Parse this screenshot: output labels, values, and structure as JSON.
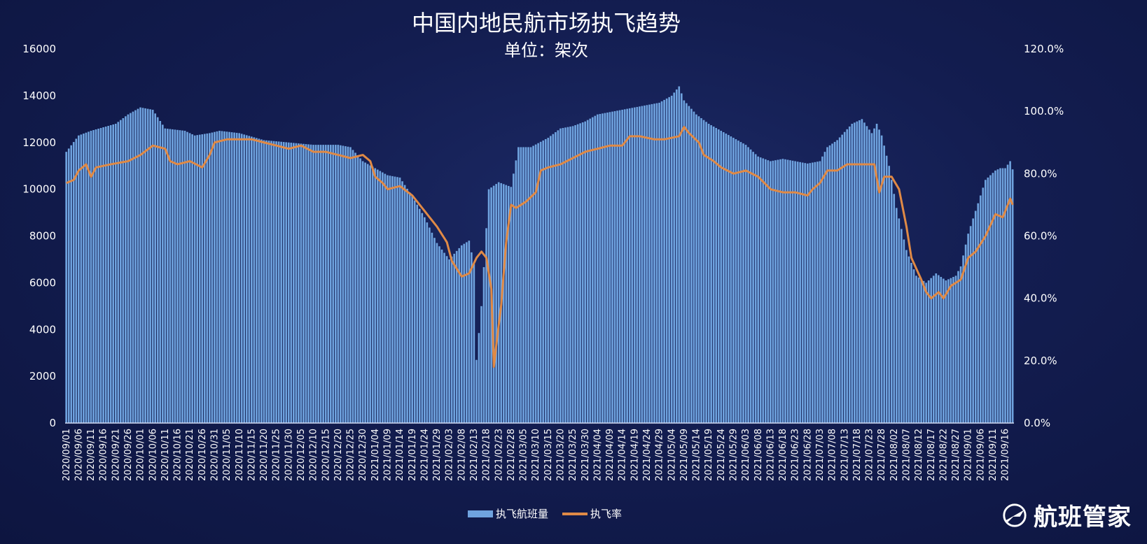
{
  "chart_data": {
    "type": "bar+line",
    "title": "中国内地民航市场执飞趋势",
    "subtitle": "单位：架次",
    "x_start": "2020-09-01",
    "x_end": "2021-09-19",
    "x_tick_labels": [
      "2020/09/01",
      "2020/09/06",
      "2020/09/11",
      "2020/09/16",
      "2020/09/21",
      "2020/09/26",
      "2020/10/01",
      "2020/10/06",
      "2020/10/11",
      "2020/10/16",
      "2020/10/21",
      "2020/10/26",
      "2020/10/31",
      "2020/11/05",
      "2020/11/10",
      "2020/11/15",
      "2020/11/20",
      "2020/11/25",
      "2020/11/30",
      "2020/12/05",
      "2020/12/10",
      "2020/12/15",
      "2020/12/20",
      "2020/12/25",
      "2020/12/30",
      "2021/01/04",
      "2021/01/09",
      "2021/01/14",
      "2021/01/19",
      "2021/01/24",
      "2021/01/29",
      "2021/02/03",
      "2021/02/08",
      "2021/02/13",
      "2021/02/18",
      "2021/02/23",
      "2021/02/28",
      "2021/03/05",
      "2021/03/10",
      "2021/03/15",
      "2021/03/20",
      "2021/03/25",
      "2021/03/30",
      "2021/04/04",
      "2021/04/09",
      "2021/04/14",
      "2021/04/19",
      "2021/04/24",
      "2021/04/29",
      "2021/05/04",
      "2021/05/09",
      "2021/05/14",
      "2021/05/19",
      "2021/05/24",
      "2021/05/29",
      "2021/06/03",
      "2021/06/08",
      "2021/06/13",
      "2021/06/18",
      "2021/06/23",
      "2021/06/28",
      "2021/07/03",
      "2021/07/08",
      "2021/07/13",
      "2021/07/18",
      "2021/07/23",
      "2021/07/28",
      "2021/08/02",
      "2021/08/07",
      "2021/08/12",
      "2021/08/17",
      "2021/08/22",
      "2021/08/27",
      "2021/09/01",
      "2021/09/06",
      "2021/09/11",
      "2021/09/16"
    ],
    "y_left": {
      "min": 0,
      "max": 16000,
      "ticks": [
        "0",
        "2000",
        "4000",
        "6000",
        "8000",
        "10000",
        "12000",
        "14000",
        "16000"
      ]
    },
    "y_right": {
      "min": 0,
      "max": 120,
      "ticks": [
        "0.0%",
        "20.0%",
        "40.0%",
        "60.0%",
        "80.0%",
        "100.0%",
        "120.0%"
      ]
    },
    "series": [
      {
        "name": "执飞航班量",
        "kind": "bar",
        "axis": "left",
        "color": "#6fa3df",
        "anchors": [
          [
            0,
            11600
          ],
          [
            5,
            12300
          ],
          [
            10,
            12500
          ],
          [
            20,
            12800
          ],
          [
            25,
            13200
          ],
          [
            30,
            13500
          ],
          [
            35,
            13400
          ],
          [
            40,
            12600
          ],
          [
            48,
            12500
          ],
          [
            52,
            12300
          ],
          [
            58,
            12400
          ],
          [
            62,
            12500
          ],
          [
            70,
            12400
          ],
          [
            80,
            12100
          ],
          [
            90,
            12000
          ],
          [
            100,
            11900
          ],
          [
            110,
            11900
          ],
          [
            115,
            11800
          ],
          [
            120,
            11200
          ],
          [
            125,
            10900
          ],
          [
            130,
            10600
          ],
          [
            135,
            10500
          ],
          [
            140,
            9700
          ],
          [
            145,
            8800
          ],
          [
            150,
            7700
          ],
          [
            155,
            7000
          ],
          [
            160,
            7600
          ],
          [
            163,
            7800
          ],
          [
            165,
            6800
          ],
          [
            166,
            2700
          ],
          [
            168,
            5000
          ],
          [
            171,
            10000
          ],
          [
            175,
            10300
          ],
          [
            180,
            10100
          ],
          [
            183,
            11800
          ],
          [
            188,
            11800
          ],
          [
            195,
            12200
          ],
          [
            200,
            12600
          ],
          [
            205,
            12700
          ],
          [
            210,
            12900
          ],
          [
            215,
            13200
          ],
          [
            220,
            13300
          ],
          [
            230,
            13500
          ],
          [
            240,
            13700
          ],
          [
            245,
            14000
          ],
          [
            248,
            14400
          ],
          [
            250,
            13800
          ],
          [
            255,
            13200
          ],
          [
            260,
            12800
          ],
          [
            265,
            12500
          ],
          [
            270,
            12200
          ],
          [
            275,
            11900
          ],
          [
            280,
            11400
          ],
          [
            285,
            11200
          ],
          [
            290,
            11300
          ],
          [
            295,
            11200
          ],
          [
            300,
            11100
          ],
          [
            305,
            11200
          ],
          [
            308,
            11800
          ],
          [
            312,
            12100
          ],
          [
            318,
            12800
          ],
          [
            322,
            13000
          ],
          [
            326,
            12400
          ],
          [
            328,
            12800
          ],
          [
            330,
            12300
          ],
          [
            333,
            11000
          ],
          [
            336,
            9200
          ],
          [
            340,
            7400
          ],
          [
            344,
            6300
          ],
          [
            348,
            6000
          ],
          [
            352,
            6400
          ],
          [
            356,
            6100
          ],
          [
            360,
            6300
          ],
          [
            362,
            6700
          ],
          [
            365,
            8100
          ],
          [
            369,
            9400
          ],
          [
            372,
            10400
          ],
          [
            376,
            10800
          ],
          [
            378,
            10900
          ],
          [
            380,
            10900
          ],
          [
            382,
            11200
          ],
          [
            384,
            10500
          ],
          [
            385,
            10200
          ]
        ]
      },
      {
        "name": "执飞率",
        "kind": "line",
        "axis": "right",
        "color": "#e08a46",
        "anchors": [
          [
            0,
            77
          ],
          [
            3,
            78
          ],
          [
            5,
            81
          ],
          [
            8,
            83
          ],
          [
            10,
            79
          ],
          [
            12,
            82
          ],
          [
            18,
            83
          ],
          [
            25,
            84
          ],
          [
            30,
            86
          ],
          [
            35,
            89
          ],
          [
            40,
            88
          ],
          [
            42,
            84
          ],
          [
            45,
            83
          ],
          [
            50,
            84
          ],
          [
            55,
            82
          ],
          [
            58,
            86
          ],
          [
            60,
            90
          ],
          [
            65,
            91
          ],
          [
            70,
            91
          ],
          [
            75,
            91
          ],
          [
            80,
            90
          ],
          [
            85,
            89
          ],
          [
            90,
            88
          ],
          [
            95,
            89
          ],
          [
            100,
            87
          ],
          [
            105,
            87
          ],
          [
            110,
            86
          ],
          [
            115,
            85
          ],
          [
            120,
            86
          ],
          [
            123,
            84
          ],
          [
            125,
            79
          ],
          [
            128,
            77
          ],
          [
            130,
            75
          ],
          [
            135,
            76
          ],
          [
            140,
            73
          ],
          [
            145,
            68
          ],
          [
            150,
            63
          ],
          [
            154,
            58
          ],
          [
            156,
            52
          ],
          [
            160,
            47
          ],
          [
            163,
            48
          ],
          [
            166,
            53
          ],
          [
            168,
            55
          ],
          [
            170,
            53
          ],
          [
            172,
            43
          ],
          [
            173,
            18
          ],
          [
            174,
            25
          ],
          [
            176,
            38
          ],
          [
            178,
            58
          ],
          [
            180,
            70
          ],
          [
            182,
            69
          ],
          [
            186,
            71
          ],
          [
            190,
            74
          ],
          [
            192,
            81
          ],
          [
            195,
            82
          ],
          [
            200,
            83
          ],
          [
            205,
            85
          ],
          [
            210,
            87
          ],
          [
            215,
            88
          ],
          [
            220,
            89
          ],
          [
            225,
            89
          ],
          [
            228,
            92
          ],
          [
            232,
            92
          ],
          [
            238,
            91
          ],
          [
            242,
            91
          ],
          [
            248,
            92
          ],
          [
            250,
            95
          ],
          [
            252,
            93
          ],
          [
            256,
            90
          ],
          [
            258,
            86
          ],
          [
            262,
            84
          ],
          [
            265,
            82
          ],
          [
            270,
            80
          ],
          [
            275,
            81
          ],
          [
            280,
            79
          ],
          [
            285,
            75
          ],
          [
            290,
            74
          ],
          [
            295,
            74
          ],
          [
            300,
            73
          ],
          [
            302,
            75
          ],
          [
            305,
            77
          ],
          [
            308,
            81
          ],
          [
            312,
            81
          ],
          [
            316,
            83
          ],
          [
            320,
            83
          ],
          [
            324,
            83
          ],
          [
            327,
            83
          ],
          [
            329,
            74
          ],
          [
            331,
            79
          ],
          [
            334,
            79
          ],
          [
            337,
            75
          ],
          [
            340,
            63
          ],
          [
            342,
            53
          ],
          [
            346,
            46
          ],
          [
            348,
            42
          ],
          [
            350,
            40
          ],
          [
            353,
            42
          ],
          [
            355,
            40
          ],
          [
            358,
            44
          ],
          [
            362,
            46
          ],
          [
            365,
            53
          ],
          [
            368,
            55
          ],
          [
            372,
            60
          ],
          [
            376,
            67
          ],
          [
            379,
            66
          ],
          [
            382,
            72
          ],
          [
            384,
            68
          ],
          [
            386,
            66
          ],
          [
            388,
            57
          ],
          [
            390,
            67
          ],
          [
            392,
            69
          ],
          [
            394,
            73
          ],
          [
            396,
            68
          ]
        ]
      }
    ],
    "legend": [
      "执飞航班量",
      "执飞率"
    ],
    "legend_position": "bottom-center"
  },
  "brand": {
    "name": "航班管家",
    "icon": "airplane-logo-icon"
  }
}
